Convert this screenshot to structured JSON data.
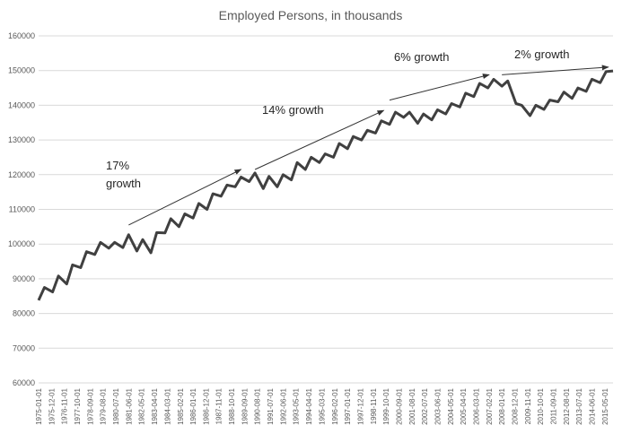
{
  "chart_data": {
    "type": "line",
    "title": "Employed Persons, in thousands",
    "xlabel": "",
    "ylabel": "",
    "ylim": [
      60000,
      160000
    ],
    "y_ticks": [
      60000,
      70000,
      80000,
      90000,
      100000,
      110000,
      120000,
      130000,
      140000,
      150000,
      160000
    ],
    "x_ticks": [
      "1975-01-01",
      "1975-12-01",
      "1976-11-01",
      "1977-10-01",
      "1978-09-01",
      "1979-08-01",
      "1980-07-01",
      "1981-06-01",
      "1982-05-01",
      "1983-04-01",
      "1984-03-01",
      "1985-02-01",
      "1986-01-01",
      "1986-12-01",
      "1987-11-01",
      "1988-10-01",
      "1989-09-01",
      "1990-08-01",
      "1991-07-01",
      "1992-06-01",
      "1993-05-01",
      "1994-04-01",
      "1995-03-01",
      "1996-02-01",
      "1997-01-01",
      "1997-12-01",
      "1998-11-01",
      "1999-10-01",
      "2000-09-01",
      "2001-08-01",
      "2002-07-01",
      "2003-06-01",
      "2004-05-01",
      "2005-04-01",
      "2006-03-01",
      "2007-02-01",
      "2008-01-01",
      "2008-12-01",
      "2009-11-01",
      "2010-10-01",
      "2011-09-01",
      "2012-08-01",
      "2013-07-01",
      "2014-06-01",
      "2015-05-01"
    ],
    "grid": true,
    "legend": "none",
    "series": [
      {
        "color": "#404040",
        "x": [
          "1975-01-01",
          "1975-06-01",
          "1976-01-01",
          "1976-06-01",
          "1977-01-01",
          "1977-06-01",
          "1978-01-01",
          "1978-06-01",
          "1979-01-01",
          "1979-06-01",
          "1980-01-01",
          "1980-06-01",
          "1981-01-01",
          "1981-06-01",
          "1982-01-01",
          "1982-06-01",
          "1983-01-01",
          "1983-06-01",
          "1984-01-01",
          "1984-06-01",
          "1985-01-01",
          "1985-06-01",
          "1986-01-01",
          "1986-06-01",
          "1987-01-01",
          "1987-06-01",
          "1988-01-01",
          "1988-06-01",
          "1989-01-01",
          "1989-06-01",
          "1990-01-01",
          "1990-06-01",
          "1991-01-01",
          "1991-06-01",
          "1992-01-01",
          "1992-06-01",
          "1993-01-01",
          "1993-06-01",
          "1994-01-01",
          "1994-06-01",
          "1995-01-01",
          "1995-06-01",
          "1996-01-01",
          "1996-06-01",
          "1997-01-01",
          "1997-06-01",
          "1998-01-01",
          "1998-06-01",
          "1999-01-01",
          "1999-06-01",
          "2000-01-01",
          "2000-06-01",
          "2001-01-01",
          "2001-06-01",
          "2002-01-01",
          "2002-06-01",
          "2003-01-01",
          "2003-06-01",
          "2004-01-01",
          "2004-06-01",
          "2005-01-01",
          "2005-06-01",
          "2006-01-01",
          "2006-06-01",
          "2007-01-01",
          "2007-06-01",
          "2008-01-01",
          "2008-06-01",
          "2009-01-01",
          "2009-06-01",
          "2010-01-01",
          "2010-06-01",
          "2011-01-01",
          "2011-06-01",
          "2012-01-01",
          "2012-06-01",
          "2013-01-01",
          "2013-06-01",
          "2014-01-01",
          "2014-06-01",
          "2015-01-01",
          "2015-06-01",
          "2015-12-01"
        ],
        "values": [
          83800,
          87500,
          86200,
          90800,
          88500,
          94000,
          93200,
          97800,
          97000,
          100500,
          98800,
          100500,
          99000,
          102700,
          98000,
          101300,
          97500,
          103300,
          103200,
          107300,
          105000,
          108700,
          107500,
          111700,
          110000,
          114500,
          113800,
          117000,
          116500,
          119300,
          118000,
          120500,
          116000,
          119500,
          116500,
          120000,
          118500,
          123500,
          121500,
          125000,
          123500,
          126000,
          125000,
          129000,
          127500,
          131000,
          130000,
          132800,
          132000,
          135500,
          134500,
          138000,
          136500,
          138000,
          134800,
          137500,
          135800,
          138700,
          137500,
          140500,
          139500,
          143500,
          142500,
          146300,
          145000,
          147500,
          145500,
          147000,
          140500,
          140000,
          137000,
          140000,
          138800,
          141500,
          141000,
          143800,
          142000,
          145000,
          144000,
          147500,
          146500,
          149700,
          149900
        ]
      }
    ],
    "annotations": [
      {
        "text_lines": [
          "17%",
          "growth"
        ],
        "from": [
          "1981-06-01",
          105500
        ],
        "to": [
          "1989-06-01",
          121500
        ]
      },
      {
        "text_lines": [
          "14% growth"
        ],
        "from": [
          "1990-06-01",
          121500
        ],
        "to": [
          "1999-08-01",
          138500
        ]
      },
      {
        "text_lines": [
          "6% growth"
        ],
        "from": [
          "2000-01-01",
          141500
        ],
        "to": [
          "2007-02-01",
          148800
        ]
      },
      {
        "text_lines": [
          "2% growth"
        ],
        "from": [
          "2008-01-01",
          148800
        ],
        "to": [
          "2015-08-01",
          151000
        ]
      }
    ]
  }
}
